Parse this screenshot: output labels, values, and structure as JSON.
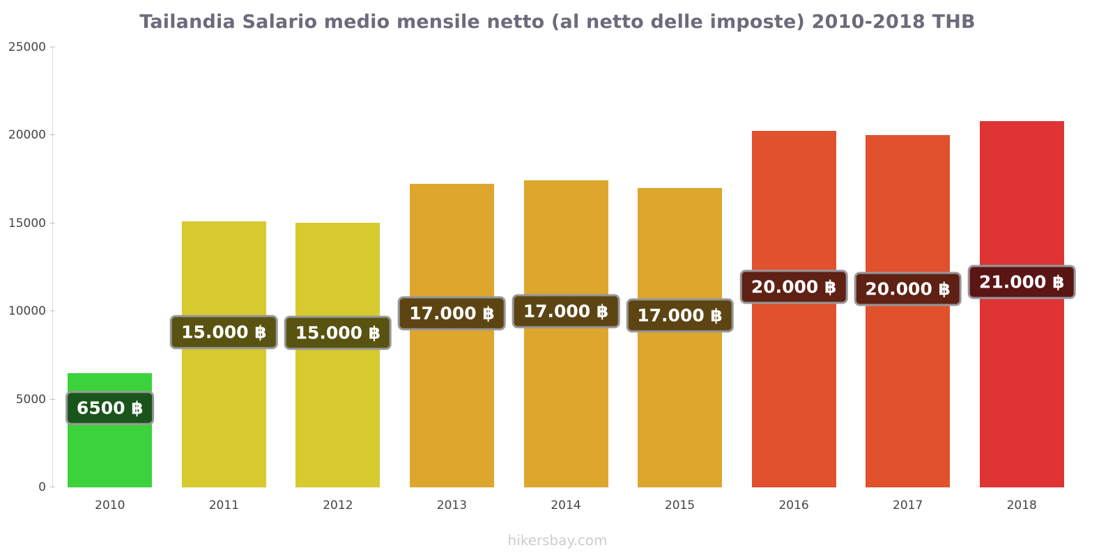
{
  "chart_data": {
    "type": "bar",
    "title": "Tailandia Salario medio mensile netto (al netto delle imposte) 2010-2018 THB",
    "footer": "hikersbay.com",
    "categories": [
      "2010",
      "2011",
      "2012",
      "2013",
      "2014",
      "2015",
      "2016",
      "2017",
      "2018"
    ],
    "values": [
      6500,
      15100,
      15050,
      17250,
      17450,
      17000,
      20250,
      20000,
      20800
    ],
    "bar_labels": [
      "6500 ฿",
      "15.000 ฿",
      "15.000 ฿",
      "17.000 ฿",
      "17.000 ฿",
      "17.000 ฿",
      "20.000 ฿",
      "20.000 ฿",
      "21.000 ฿"
    ],
    "bar_colors": [
      "#3bd23b",
      "#d6ca2f",
      "#d6ca2f",
      "#dda62d",
      "#dda62d",
      "#dda62d",
      "#e1512d",
      "#e1512d",
      "#de3434"
    ],
    "label_colors": [
      "#19541a",
      "#585311",
      "#585311",
      "#5d4513",
      "#5d4513",
      "#5d4513",
      "#5e2113",
      "#5e2113",
      "#5a1515"
    ],
    "xlabel": "",
    "ylabel": "",
    "ylim": [
      0,
      25000
    ],
    "yticks": [
      0,
      5000,
      10000,
      15000,
      20000,
      25000
    ],
    "grid": false,
    "legend": null
  }
}
